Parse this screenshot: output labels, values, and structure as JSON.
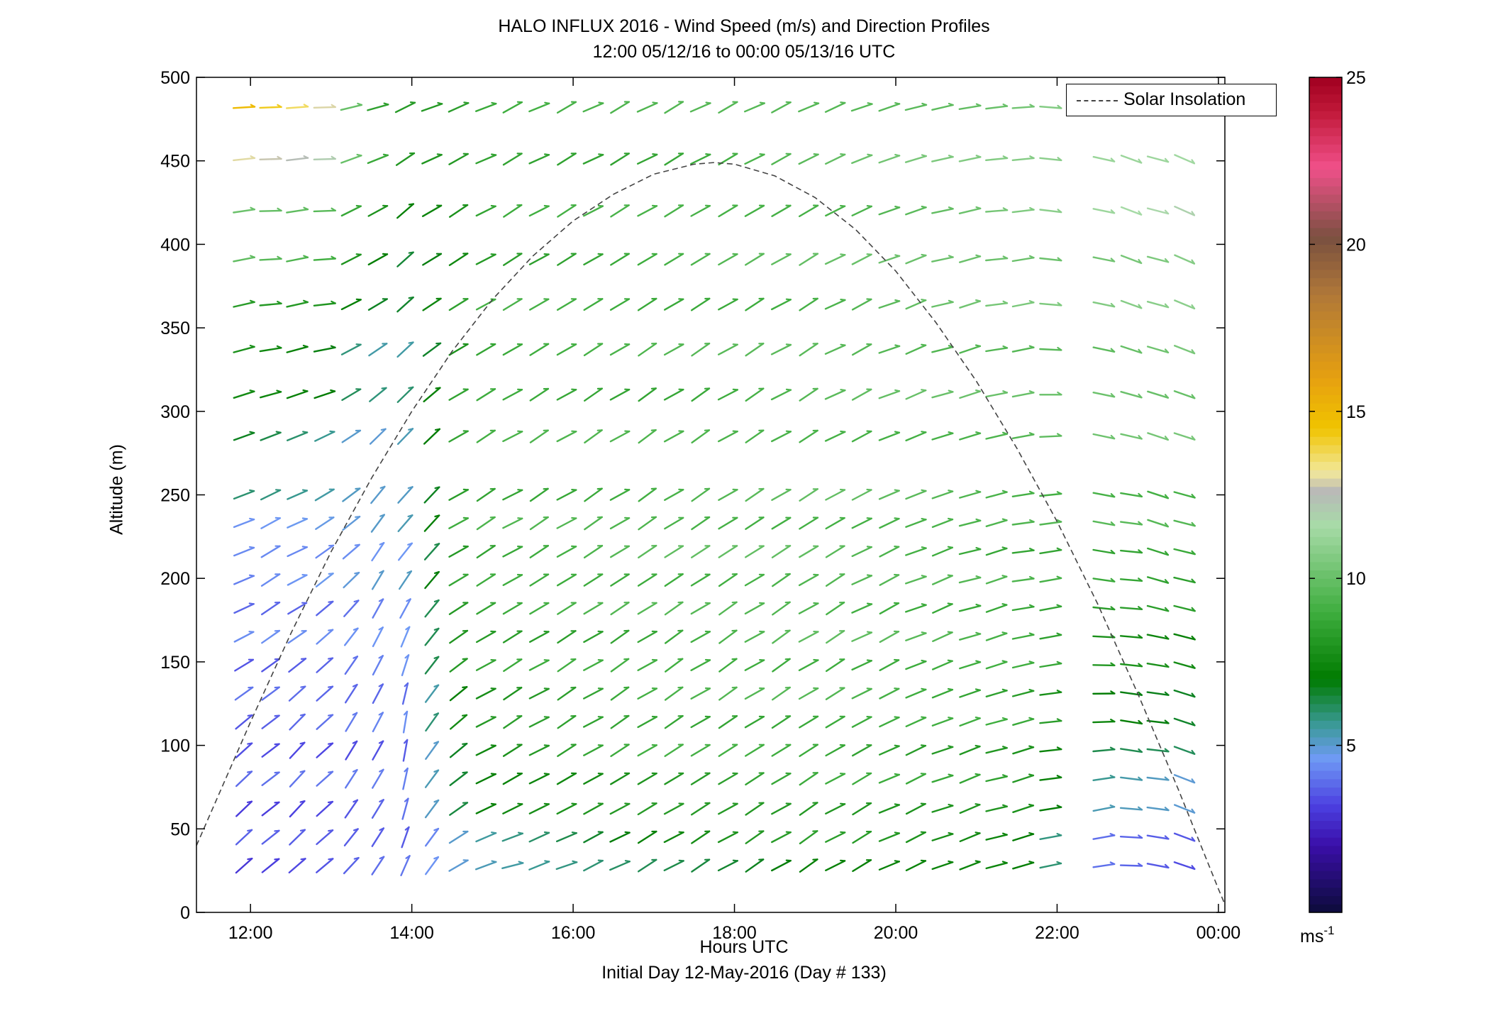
{
  "header": {
    "title_line1": "HALO INFLUX 2016 - Wind Speed (m/s) and Direction Profiles",
    "title_line2": "12:00 05/12/16 to 00:00 05/13/16  UTC"
  },
  "axes": {
    "xlabel": "Hours UTC",
    "xlabel_sub": "Initial Day 12-May-2016 (Day # 133)",
    "ylabel": "Altitude (m)"
  },
  "legend": {
    "label": "Solar Insolation"
  },
  "colorbar": {
    "unit_base": "ms",
    "unit_exp": "-1",
    "ticks": [
      "5",
      "10",
      "15",
      "20",
      "25"
    ],
    "colors": [
      "#0c0c3a",
      "#3a0ea8",
      "#4b3fe0",
      "#6f9af5",
      "#3c9a9a",
      "#007b00",
      "#3fae3f",
      "#a8dba8",
      "#b8b8b8",
      "#f2e89a",
      "#f0c400",
      "#e6a010",
      "#b07838",
      "#7a5040",
      "#f0508a",
      "#c01838",
      "#a00020"
    ]
  },
  "chart_data": {
    "type": "wind barb profile",
    "title": "HALO INFLUX 2016 - Wind Speed (m/s) and Direction Profiles",
    "subtitle": "12:00 05/12/16 to 00:00 05/13/16  UTC",
    "xlabel": "Hours UTC",
    "ylabel": "Altitude (m)",
    "x_ticks": [
      "12:00",
      "14:00",
      "16:00",
      "18:00",
      "20:00",
      "22:00",
      "00:00"
    ],
    "y_ticks": [
      "0",
      "50",
      "100",
      "150",
      "200",
      "250",
      "300",
      "350",
      "400",
      "450",
      "500"
    ],
    "xlim_hours": [
      11.33,
      24.08
    ],
    "ylim": [
      0,
      500
    ],
    "colorbar_range": [
      0,
      25
    ],
    "times_hours": [
      11.92,
      12.25,
      12.58,
      12.92,
      13.25,
      13.58,
      13.92,
      14.25,
      14.58,
      14.92,
      15.25,
      15.58,
      15.92,
      16.25,
      16.58,
      16.92,
      17.25,
      17.58,
      17.92,
      18.25,
      18.58,
      18.92,
      19.25,
      19.58,
      19.92,
      20.25,
      20.58,
      20.92,
      21.25,
      21.58,
      21.92,
      22.58,
      22.92,
      23.25,
      23.58
    ],
    "altitudes_m": [
      28,
      45,
      62,
      80,
      97,
      114,
      131,
      148,
      165,
      182,
      199,
      216,
      233,
      250,
      285,
      310,
      337,
      364,
      391,
      420,
      451,
      482
    ],
    "speed_keyframes": {
      "t": [
        11.9,
        12.9,
        13.4,
        14.0,
        14.5,
        15.0,
        17.0,
        19.0,
        21.5,
        22.5,
        23.6
      ],
      "z": [
        28,
        60,
        110,
        160,
        220,
        280,
        350,
        420,
        482
      ],
      "values": [
        [
          3.2,
          3.4,
          3.6,
          3.7,
          4.5,
          5.0,
          6.5,
          7.5,
          7.0,
          3.6,
          3.2
        ],
        [
          3.5,
          3.6,
          3.8,
          4.0,
          6.0,
          7.0,
          8.0,
          8.5,
          8.0,
          5.0,
          4.5
        ],
        [
          3.6,
          3.7,
          3.8,
          4.0,
          7.0,
          8.0,
          9.0,
          9.0,
          8.5,
          7.0,
          6.5
        ],
        [
          4.0,
          4.0,
          4.2,
          4.5,
          8.0,
          8.5,
          9.0,
          9.5,
          9.0,
          8.0,
          7.5
        ],
        [
          4.2,
          4.5,
          4.8,
          5.0,
          8.5,
          9.0,
          9.5,
          9.5,
          9.0,
          9.0,
          9.0
        ],
        [
          7.0,
          6.0,
          5.0,
          5.5,
          8.5,
          9.0,
          9.0,
          9.5,
          9.5,
          10.0,
          10.0
        ],
        [
          8.0,
          7.5,
          6.0,
          6.0,
          8.0,
          9.0,
          9.0,
          9.5,
          10.0,
          10.0,
          10.5
        ],
        [
          10.5,
          10.0,
          8.5,
          7.0,
          7.5,
          8.5,
          9.0,
          9.5,
          10.5,
          11.0,
          11.5
        ],
        [
          15.0,
          13.5,
          9.0,
          8.5,
          8.5,
          9.0,
          9.0,
          9.5,
          10.5,
          11.5,
          12.0
        ]
      ]
    },
    "direction_keyframes_deg_math": {
      "t": [
        11.9,
        12.9,
        13.4,
        14.0,
        14.5,
        15.0,
        17.0,
        19.0,
        21.5,
        22.5,
        23.6
      ],
      "z": [
        28,
        60,
        110,
        160,
        220,
        280,
        350,
        420,
        482
      ],
      "values": [
        [
          40,
          40,
          50,
          70,
          35,
          15,
          30,
          32,
          15,
          10,
          -20
        ],
        [
          40,
          45,
          55,
          75,
          35,
          25,
          30,
          32,
          15,
          10,
          -20
        ],
        [
          38,
          45,
          60,
          80,
          38,
          30,
          32,
          32,
          15,
          0,
          -15
        ],
        [
          30,
          40,
          60,
          70,
          35,
          30,
          33,
          32,
          15,
          0,
          -15
        ],
        [
          25,
          30,
          50,
          55,
          33,
          30,
          33,
          32,
          12,
          -5,
          -18
        ],
        [
          20,
          25,
          40,
          50,
          33,
          30,
          33,
          30,
          12,
          -10,
          -20
        ],
        [
          10,
          10,
          30,
          42,
          30,
          30,
          32,
          30,
          10,
          -15,
          -20
        ],
        [
          5,
          5,
          30,
          38,
          30,
          30,
          30,
          30,
          5,
          -15,
          -20
        ],
        [
          3,
          3,
          15,
          25,
          20,
          25,
          28,
          25,
          5,
          -15,
          -20
        ]
      ]
    },
    "solar_insolation_curve": {
      "x_hours": [
        11.33,
        12.0,
        12.5,
        13.0,
        13.5,
        14.0,
        14.5,
        15.0,
        15.5,
        16.0,
        16.5,
        17.0,
        17.5,
        17.75,
        18.0,
        18.5,
        19.0,
        19.5,
        20.0,
        20.5,
        21.0,
        21.5,
        22.0,
        22.5,
        23.0,
        23.5,
        24.0,
        24.47
      ],
      "y_m": [
        40,
        114,
        167,
        216,
        260,
        300,
        336,
        367,
        393,
        414,
        430,
        442,
        448,
        449,
        448,
        441,
        428,
        409,
        384,
        353,
        318,
        278,
        234,
        185,
        131,
        74,
        14,
        -40
      ]
    }
  }
}
